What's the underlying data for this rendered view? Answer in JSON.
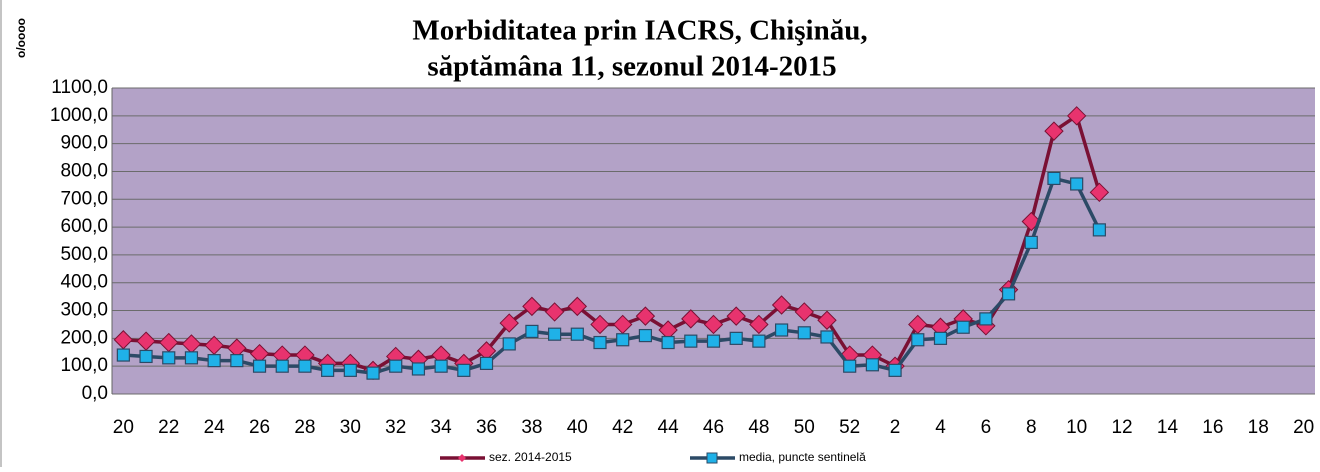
{
  "chart_data": {
    "type": "line",
    "title": [
      "Morbiditatea prin IACRS, Chişinău,",
      "săptămâna 11, sezonul 2014-2015"
    ],
    "y_label": "o/oooo",
    "categories": [
      "20",
      null,
      "22",
      null,
      "24",
      null,
      "26",
      null,
      "28",
      null,
      "30",
      null,
      "32",
      null,
      "34",
      null,
      "36",
      null,
      "38",
      null,
      "40",
      null,
      "42",
      null,
      "44",
      null,
      "46",
      null,
      "48",
      null,
      "50",
      null,
      "52",
      null,
      "2",
      null,
      "4",
      null,
      "6",
      null,
      "8",
      null,
      "10",
      null,
      "12",
      null,
      "14",
      null,
      "16",
      null,
      "18",
      null,
      "20"
    ],
    "series": [
      {
        "name": "sez. 2014-2015",
        "color": "#7a1034",
        "marker_color": "#e8336e",
        "marker": "diamond",
        "values": [
          195,
          190,
          185,
          180,
          175,
          165,
          145,
          140,
          140,
          110,
          110,
          85,
          135,
          125,
          140,
          110,
          155,
          255,
          315,
          295,
          315,
          250,
          250,
          280,
          230,
          270,
          250,
          280,
          250,
          320,
          295,
          265,
          140,
          140,
          100,
          250,
          240,
          270,
          245,
          375,
          620,
          945,
          1000,
          725,
          null,
          null,
          null,
          null,
          null,
          null,
          null,
          null,
          null
        ]
      },
      {
        "name": "media, puncte sentinelă",
        "color": "#2c4a66",
        "marker_color": "#1fb1e8",
        "marker": "square",
        "values": [
          140,
          135,
          130,
          130,
          120,
          120,
          100,
          100,
          100,
          85,
          85,
          75,
          100,
          90,
          100,
          85,
          110,
          180,
          225,
          215,
          215,
          185,
          195,
          210,
          185,
          190,
          190,
          200,
          190,
          230,
          220,
          205,
          100,
          105,
          85,
          195,
          200,
          240,
          270,
          360,
          545,
          775,
          755,
          590,
          null,
          null,
          null,
          null,
          null,
          null,
          null,
          null,
          null
        ]
      }
    ],
    "ylim": [
      0,
      1100
    ],
    "yticks": [
      {
        "value": 0,
        "label": "0,0"
      },
      {
        "value": 100,
        "label": "100,0"
      },
      {
        "value": 200,
        "label": "200,0"
      },
      {
        "value": 300,
        "label": "300,0"
      },
      {
        "value": 400,
        "label": "400,0"
      },
      {
        "value": 500,
        "label": "500,0"
      },
      {
        "value": 600,
        "label": "600,0"
      },
      {
        "value": 700,
        "label": "700,0"
      },
      {
        "value": 800,
        "label": "800,0"
      },
      {
        "value": 900,
        "label": "900,0"
      },
      {
        "value": 1000,
        "label": "1000,0"
      },
      {
        "value": 1100,
        "label": "1100,0"
      }
    ],
    "grid": true,
    "plot_background": "#b3a2c7",
    "legend": "bottom"
  }
}
